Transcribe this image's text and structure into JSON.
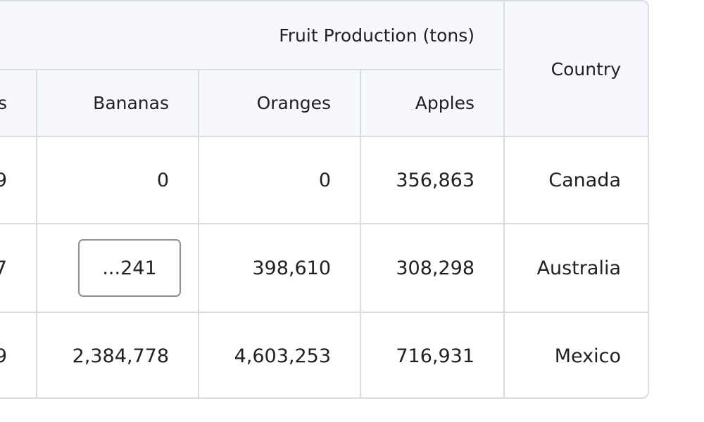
{
  "table": {
    "group_header": "Fruit Production (tons)",
    "columns": {
      "partial": "s",
      "bananas": "Bananas",
      "oranges": "Oranges",
      "apples": "Apples",
      "country": "Country"
    },
    "rows": [
      {
        "partial": "9",
        "bananas": "0",
        "oranges": "0",
        "apples": "356,863",
        "country": "Canada"
      },
      {
        "partial": "7",
        "bananas": "...241",
        "oranges": "398,610",
        "apples": "308,298",
        "country": "Australia"
      },
      {
        "partial": "9",
        "bananas": "2,384,778",
        "oranges": "4,603,253",
        "apples": "716,931",
        "country": "Mexico"
      }
    ]
  }
}
